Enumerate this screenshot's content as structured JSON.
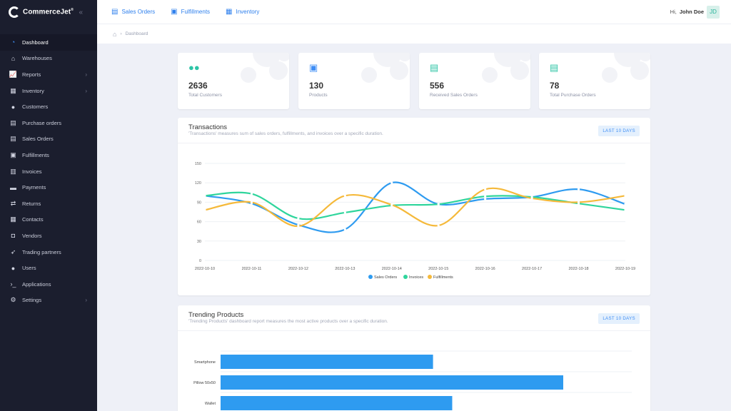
{
  "brand": {
    "name": "CommerceJet",
    "mark": "®"
  },
  "sidebar": {
    "items": [
      {
        "label": "Dashboard",
        "icon": "gauge-icon",
        "glyph": "◔",
        "active": true
      },
      {
        "label": "Warehouses",
        "icon": "warehouse-icon",
        "glyph": "⌂"
      },
      {
        "label": "Reports",
        "icon": "chart-icon",
        "glyph": "📈",
        "chevron": true
      },
      {
        "label": "Inventory",
        "icon": "boxes-icon",
        "glyph": "▦",
        "chevron": true
      },
      {
        "label": "Customers",
        "icon": "user-icon",
        "glyph": "●"
      },
      {
        "label": "Purchase orders",
        "icon": "file-import-icon",
        "glyph": "▤"
      },
      {
        "label": "Sales Orders",
        "icon": "file-export-icon",
        "glyph": "▤"
      },
      {
        "label": "Fulfillments",
        "icon": "box-open-icon",
        "glyph": "▣"
      },
      {
        "label": "Invoices",
        "icon": "invoice-icon",
        "glyph": "▥"
      },
      {
        "label": "Payments",
        "icon": "money-icon",
        "glyph": "▬"
      },
      {
        "label": "Returns",
        "icon": "return-icon",
        "glyph": "⇄"
      },
      {
        "label": "Contacts",
        "icon": "address-book-icon",
        "glyph": "▦"
      },
      {
        "label": "Vendors",
        "icon": "vendor-icon",
        "glyph": "◘"
      },
      {
        "label": "Trading partners",
        "icon": "rocket-icon",
        "glyph": "➶"
      },
      {
        "label": "Users",
        "icon": "users-icon",
        "glyph": "●"
      },
      {
        "label": "Applications",
        "icon": "terminal-icon",
        "glyph": "›_"
      },
      {
        "label": "Settings",
        "icon": "gears-icon",
        "glyph": "⚙",
        "chevron": true
      }
    ]
  },
  "topnav": [
    {
      "label": "Sales Orders",
      "icon": "file-export-icon"
    },
    {
      "label": "Fulfillments",
      "icon": "box-open-icon"
    },
    {
      "label": "Inventory",
      "icon": "boxes-icon"
    }
  ],
  "user": {
    "greeting": "Hi,",
    "name": "John Doe",
    "initials": "JD"
  },
  "breadcrumb": {
    "separator": "›",
    "current": "Dashboard"
  },
  "stats": [
    {
      "value": "2636",
      "label": "Total Customers",
      "icon": "users-icon",
      "color": "#2ec4a6"
    },
    {
      "value": "130",
      "label": "Products",
      "icon": "box-open-icon",
      "color": "#3f8ef5"
    },
    {
      "value": "556",
      "label": "Received Sales Orders",
      "icon": "file-export-icon",
      "color": "#2ec4a6"
    },
    {
      "value": "78",
      "label": "Total Purchase Orders",
      "icon": "file-import-icon",
      "color": "#2ec4a6"
    }
  ],
  "transactions": {
    "title": "Transactions",
    "subtitle": "'Transactions' measures sum of sales orders, fulfillments, and invoices over a specific duration.",
    "range": "LAST 10 DAYS"
  },
  "trending": {
    "title": "Trending Products",
    "subtitle": "'Trending Products' dashboard report measures the most active products over a specific duration.",
    "range": "LAST 10 DAYS"
  },
  "chart_data": [
    {
      "type": "line",
      "x": [
        "2022-10-10",
        "2022-10-11",
        "2022-10-12",
        "2022-10-13",
        "2022-10-14",
        "2022-10-15",
        "2022-10-16",
        "2022-10-17",
        "2022-10-18",
        "2022-10-19"
      ],
      "ylim": [
        0,
        150
      ],
      "yticks": [
        0,
        30,
        60,
        90,
        120,
        150
      ],
      "grid": true,
      "legend": "bottom",
      "series": [
        {
          "name": "Sales Orders",
          "color": "#2e9bf0",
          "values": [
            100,
            88,
            55,
            48,
            120,
            87,
            95,
            98,
            110,
            87
          ]
        },
        {
          "name": "Invoices",
          "color": "#2fd59c",
          "values": [
            100,
            103,
            65,
            74,
            85,
            87,
            99,
            98,
            88,
            78
          ]
        },
        {
          "name": "Fulfillments",
          "color": "#f5b93a",
          "values": [
            78,
            90,
            53,
            100,
            86,
            54,
            110,
            96,
            90,
            100
          ]
        }
      ]
    },
    {
      "type": "bar",
      "orientation": "horizontal",
      "categories": [
        "Smartphone",
        "Pillow 50x50",
        "Wallet"
      ],
      "values": [
        310,
        500,
        338
      ],
      "xlim": [
        0,
        600
      ],
      "color": "#2e9bf0",
      "grid": true
    }
  ]
}
